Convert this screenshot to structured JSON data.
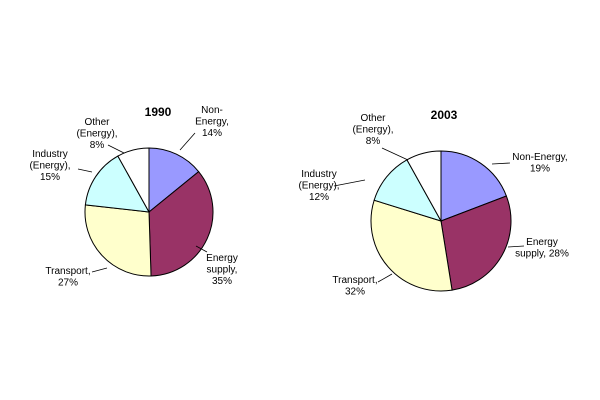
{
  "chart_data": [
    {
      "type": "pie",
      "title": "1990",
      "slices": [
        {
          "label": "Non-Energy",
          "value": 14,
          "color": "#9999ff"
        },
        {
          "label": "Energy supply",
          "value": 35,
          "color": "#993366"
        },
        {
          "label": "Transport",
          "value": 27,
          "color": "#ffffcc"
        },
        {
          "label": "Industry (Energy)",
          "value": 15,
          "color": "#ccffff"
        },
        {
          "label": "Other (Energy)",
          "value": 8,
          "color": "#ffffff"
        }
      ],
      "label_text": [
        [
          "Non-",
          "Energy,",
          "14%"
        ],
        [
          "Energy",
          "supply,",
          "35%"
        ],
        [
          "Transport,",
          "27%"
        ],
        [
          "Industry",
          "(Energy),",
          "15%"
        ],
        [
          "Other",
          "(Energy),",
          "8%"
        ]
      ]
    },
    {
      "type": "pie",
      "title": "2003",
      "slices": [
        {
          "label": "Non-Energy",
          "value": 19,
          "color": "#9999ff"
        },
        {
          "label": "Energy supply",
          "value": 28,
          "color": "#993366"
        },
        {
          "label": "Transport",
          "value": 32,
          "color": "#ffffcc"
        },
        {
          "label": "Industry (Energy)",
          "value": 12,
          "color": "#ccffff"
        },
        {
          "label": "Other (Energy)",
          "value": 8,
          "color": "#ffffff"
        }
      ],
      "label_text": [
        [
          "Non-Energy,",
          "19%"
        ],
        [
          "Energy",
          "supply, 28%"
        ],
        [
          "Transport,",
          "32%"
        ],
        [
          "Industry",
          "(Energy),",
          "12%"
        ],
        [
          "Other",
          "(Energy),",
          "8%"
        ]
      ]
    }
  ]
}
